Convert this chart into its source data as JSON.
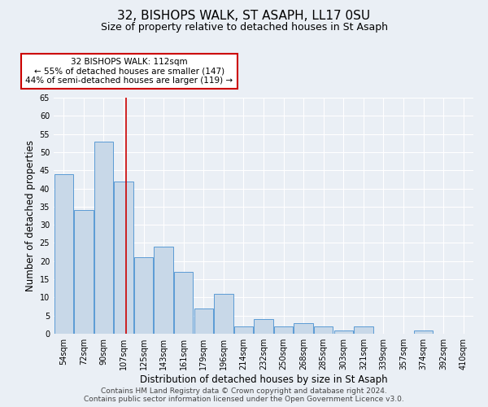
{
  "title1": "32, BISHOPS WALK, ST ASAPH, LL17 0SU",
  "title2": "Size of property relative to detached houses in St Asaph",
  "xlabel": "Distribution of detached houses by size in St Asaph",
  "ylabel": "Number of detached properties",
  "bar_color": "#c8d8e8",
  "bar_edge_color": "#5b9bd5",
  "categories": [
    "54sqm",
    "72sqm",
    "90sqm",
    "107sqm",
    "125sqm",
    "143sqm",
    "161sqm",
    "179sqm",
    "196sqm",
    "214sqm",
    "232sqm",
    "250sqm",
    "268sqm",
    "285sqm",
    "303sqm",
    "321sqm",
    "339sqm",
    "357sqm",
    "374sqm",
    "392sqm",
    "410sqm"
  ],
  "values": [
    44,
    34,
    53,
    42,
    21,
    24,
    17,
    7,
    11,
    2,
    4,
    2,
    3,
    2,
    1,
    2,
    0,
    0,
    1,
    0,
    0
  ],
  "red_line_x": 3.12,
  "annotation_text": "32 BISHOPS WALK: 112sqm\n← 55% of detached houses are smaller (147)\n44% of semi-detached houses are larger (119) →",
  "annotation_box_color": "#ffffff",
  "annotation_edge_color": "#cc0000",
  "ylim": [
    0,
    65
  ],
  "yticks": [
    0,
    5,
    10,
    15,
    20,
    25,
    30,
    35,
    40,
    45,
    50,
    55,
    60,
    65
  ],
  "background_color": "#eaeff5",
  "plot_bg_color": "#eaeff5",
  "grid_color": "#ffffff",
  "footer_text": "Contains HM Land Registry data © Crown copyright and database right 2024.\nContains public sector information licensed under the Open Government Licence v3.0.",
  "title1_fontsize": 11,
  "title2_fontsize": 9,
  "xlabel_fontsize": 8.5,
  "ylabel_fontsize": 8.5,
  "tick_fontsize": 7,
  "footer_fontsize": 6.5
}
